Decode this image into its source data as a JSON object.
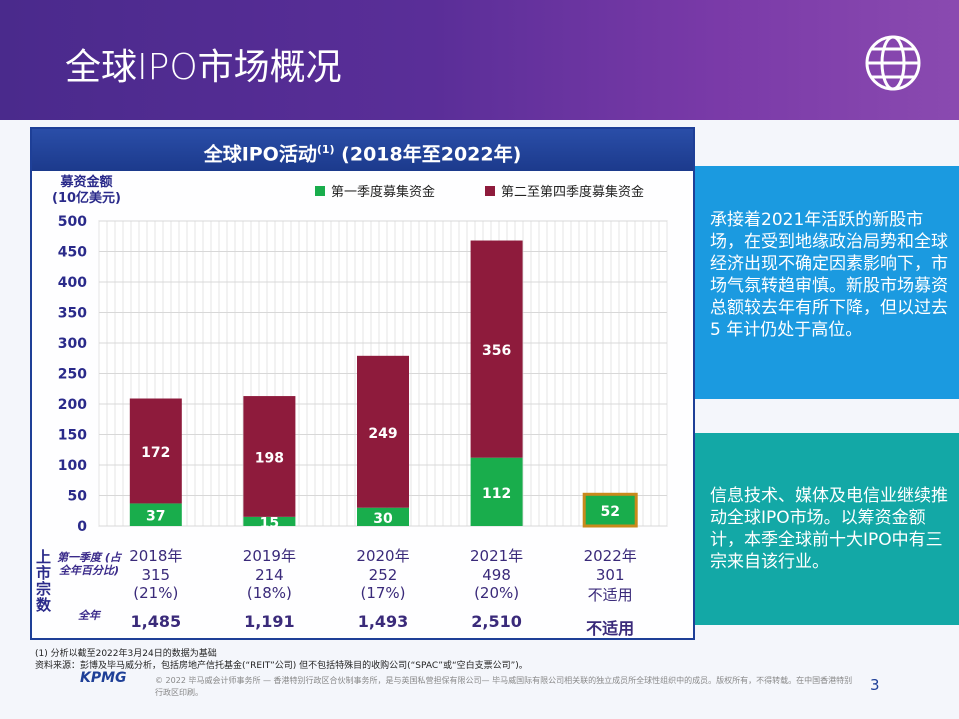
{
  "header": {
    "title": "全球IPO市场概况",
    "icon": "globe-icon"
  },
  "chart_data": {
    "type": "bar",
    "stacked": true,
    "title": "全球IPO活动",
    "title_sup": "(1)",
    "title_suffix": " (2018年至2022年)",
    "ylabel": [
      "募资金额",
      "(10亿美元)"
    ],
    "ylim": [
      0,
      500
    ],
    "yticks": [
      0,
      50,
      100,
      150,
      200,
      250,
      300,
      350,
      400,
      450,
      500
    ],
    "grid": true,
    "legend_placement": "top",
    "categories": [
      "2018年",
      "2019年",
      "2020年",
      "2021年",
      "2022年"
    ],
    "series": [
      {
        "name": "第一季度募集资金",
        "color": "#19ad4c",
        "values": [
          37,
          15,
          30,
          112,
          52
        ]
      },
      {
        "name": "第二至第四季度募集资金",
        "color": "#8e1b3c",
        "values": [
          172,
          198,
          249,
          356,
          null
        ]
      }
    ],
    "highlight_color": "#c98a1c"
  },
  "table": {
    "side_label": "上市宗数",
    "q1_label": "第一季度 (占全年百分比)",
    "full_label": "全年",
    "q1_counts": [
      "315",
      "214",
      "252",
      "498",
      "301"
    ],
    "q1_pct": [
      "(21%)",
      "(18%)",
      "(17%)",
      "(20%)",
      "不适用"
    ],
    "full_year": [
      "1,485",
      "1,191",
      "1,493",
      "2,510",
      "不适用"
    ]
  },
  "boxes": [
    "承接着2021年活跃的新股市场，在受到地缘政治局势和全球经济出现不确定因素影响下，市场气氛转趋审慎。新股市场募资总额较去年有所下降，但以过去 5 年计仍处于高位。",
    "信息技术、媒体及电信业继续推动全球IPO市场。以筹资金额计，本季全球前十大IPO中有三宗来自该行业。"
  ],
  "notes": [
    "(1) 分析以截至2022年3月24日的数据为基础",
    "资料来源：彭博及毕马威分析，包括房地产信托基金(“REIT”公司) 但不包括特殊目的收购公司(“SPAC”或“空白支票公司”)。"
  ],
  "footer": {
    "logo": "KPMG",
    "copyright": "© 2022 毕马威会计师事务所 — 香港特别行政区合伙制事务所，是与英国私营担保有限公司— 毕马威国际有限公司相关联的独立成员所全球性组织中的成员。版权所有，不得转载。在中国香港特别行政区印刷。",
    "page": "3"
  }
}
